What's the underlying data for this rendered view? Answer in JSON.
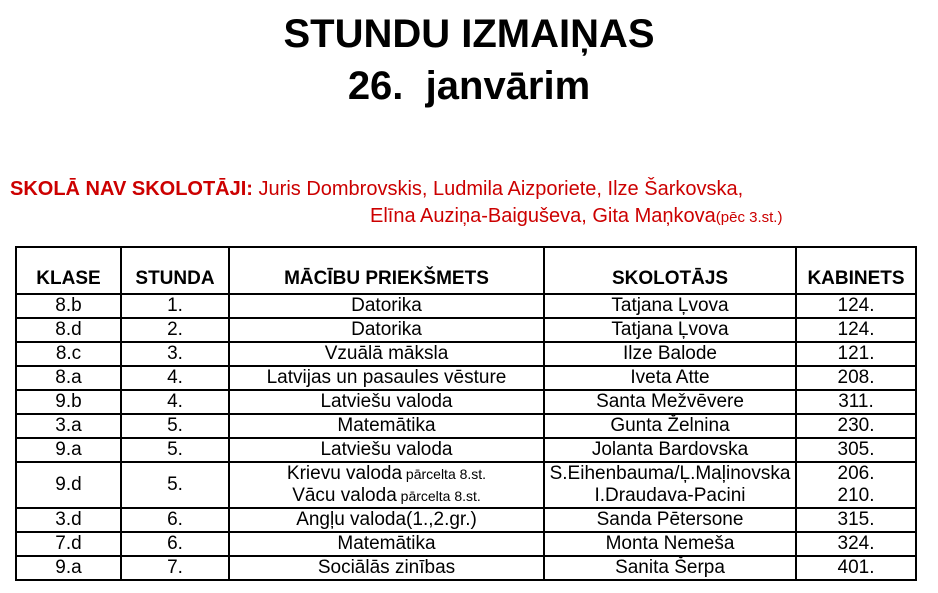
{
  "title": {
    "line1": "STUNDU IZMAIŅAS",
    "line2": "26.  janvārim"
  },
  "notice": {
    "label": "SKOLĀ NAV SKOLOTĀJI:",
    "names_line1": "Juris Dombrovskis, Ludmila Aizporiete, Ilze Šarkovska,",
    "names_line2": "Elīna Auziņa-Baiguševa, Gita Maņkova",
    "names_line2_suffix": "(pēc 3.st.)",
    "text_color": "#CC0000"
  },
  "table": {
    "headers": [
      "KLASE",
      "STUNDA",
      "MĀCĪBU PRIEKŠMETS",
      "SKOLOTĀJS",
      "KABINETS"
    ],
    "rows": [
      {
        "klase": "8.b",
        "stunda": "1.",
        "subjects": [
          {
            "text": "Datorika",
            "note": ""
          }
        ],
        "teachers": [
          "Tatjana Ļvova"
        ],
        "rooms": [
          "124."
        ]
      },
      {
        "klase": "8.d",
        "stunda": "2.",
        "subjects": [
          {
            "text": "Datorika",
            "note": ""
          }
        ],
        "teachers": [
          "Tatjana Ļvova"
        ],
        "rooms": [
          "124."
        ]
      },
      {
        "klase": "8.c",
        "stunda": "3.",
        "subjects": [
          {
            "text": "Vzuālā māksla",
            "note": ""
          }
        ],
        "teachers": [
          "Ilze Balode"
        ],
        "rooms": [
          "121."
        ]
      },
      {
        "klase": "8.a",
        "stunda": "4.",
        "subjects": [
          {
            "text": "Latvijas un pasaules vēsture",
            "note": ""
          }
        ],
        "teachers": [
          "Iveta Atte"
        ],
        "rooms": [
          "208."
        ]
      },
      {
        "klase": "9.b",
        "stunda": "4.",
        "subjects": [
          {
            "text": "Latviešu valoda",
            "note": ""
          }
        ],
        "teachers": [
          "Santa Mežvēvere"
        ],
        "rooms": [
          "311."
        ]
      },
      {
        "klase": "3.a",
        "stunda": "5.",
        "subjects": [
          {
            "text": "Matemātika",
            "note": ""
          }
        ],
        "teachers": [
          "Gunta Želnina"
        ],
        "rooms": [
          "230."
        ]
      },
      {
        "klase": "9.a",
        "stunda": "5.",
        "subjects": [
          {
            "text": "Latviešu valoda",
            "note": ""
          }
        ],
        "teachers": [
          "Jolanta Bardovska"
        ],
        "rooms": [
          "305."
        ]
      },
      {
        "klase": "9.d",
        "stunda": "5.",
        "subjects": [
          {
            "text": "Krievu valoda",
            "note": "pārcelta 8.st."
          },
          {
            "text": "Vācu valoda",
            "note": "pārcelta 8.st."
          }
        ],
        "teachers": [
          "S.Eihenbauma/Ļ.Maļinovska",
          "I.Draudava-Pacini"
        ],
        "rooms": [
          "206.",
          "210."
        ]
      },
      {
        "klase": "3.d",
        "stunda": "6.",
        "subjects": [
          {
            "text": "Angļu valoda(1.,2.gr.)",
            "note": ""
          }
        ],
        "teachers": [
          "Sanda Pētersone"
        ],
        "rooms": [
          "315."
        ]
      },
      {
        "klase": "7.d",
        "stunda": "6.",
        "subjects": [
          {
            "text": "Matemātika",
            "note": ""
          }
        ],
        "teachers": [
          "Monta Nemeša"
        ],
        "rooms": [
          "324."
        ]
      },
      {
        "klase": "9.a",
        "stunda": "7.",
        "subjects": [
          {
            "text": "Sociālās zinības",
            "note": ""
          }
        ],
        "teachers": [
          "Sanita Šerpa"
        ],
        "rooms": [
          "401."
        ]
      }
    ]
  }
}
